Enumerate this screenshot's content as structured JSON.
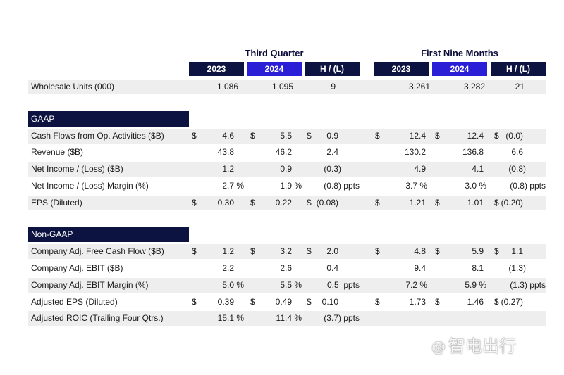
{
  "groups": {
    "third_quarter": "Third Quarter",
    "nine_months": "First Nine Months"
  },
  "col_headers": [
    "2023",
    "2024",
    "H / (L)",
    "2023",
    "2024",
    "H / (L)"
  ],
  "wholesale": {
    "label": "Wholesale Units (000)",
    "vals": [
      "1,086",
      "1,095",
      "9",
      "3,261",
      "3,282",
      "21"
    ]
  },
  "gaap": {
    "title": "GAAP",
    "rows": [
      {
        "label": "Cash Flows from Op. Activities ($B)",
        "vals": [
          "4.6",
          "5.5",
          "0.9",
          "12.4",
          "12.4",
          "(0.0)"
        ]
      },
      {
        "label": "Revenue ($B)",
        "vals": [
          "43.8",
          "46.2",
          "2.4",
          "130.2",
          "136.8",
          "6.6"
        ]
      },
      {
        "label": "Net Income / (Loss) ($B)",
        "vals": [
          "1.2",
          "0.9",
          "(0.3)",
          "4.9",
          "4.1",
          "(0.8)"
        ]
      },
      {
        "label": "Net Income / (Loss) Margin (%)",
        "vals": [
          "2.7 %",
          "1.9 %",
          "(0.8) ppts",
          "3.7 %",
          "3.0 %",
          "(0.8) ppts"
        ]
      },
      {
        "label": "EPS (Diluted)",
        "vals": [
          "0.30",
          "0.22",
          "(0.08)",
          "1.21",
          "1.01",
          "(0.20)"
        ]
      }
    ]
  },
  "non_gaap": {
    "title": "Non-GAAP",
    "rows": [
      {
        "label": "Company Adj. Free Cash Flow ($B)",
        "vals": [
          "1.2",
          "3.2",
          "2.0",
          "4.8",
          "5.9",
          "1.1"
        ]
      },
      {
        "label": "Company Adj. EBIT ($B)",
        "vals": [
          "2.2",
          "2.6",
          "0.4",
          "9.4",
          "8.1",
          "(1.3)"
        ]
      },
      {
        "label": "Company Adj. EBIT Margin (%)",
        "vals": [
          "5.0 %",
          "5.5 %",
          "0.5  ppts",
          "7.2 %",
          "5.9 %",
          "(1.3) ppts"
        ]
      },
      {
        "label": "Adjusted EPS (Diluted)",
        "vals": [
          "0.39",
          "0.49",
          "0.10",
          "1.73",
          "1.46",
          "(0.27)"
        ]
      },
      {
        "label": "Adjusted ROIC (Trailing Four Qtrs.)",
        "vals": [
          "15.1 %",
          "11.4 %",
          "(3.7) ppts",
          "",
          "",
          ""
        ]
      }
    ]
  },
  "currency_symbol": "$",
  "watermark": {
    "at": "@",
    "text": "智电出行"
  },
  "colors": {
    "header_navy": "#0d1340",
    "header_highlight": "#2a1fd6",
    "row_shade": "#eeeeee"
  }
}
